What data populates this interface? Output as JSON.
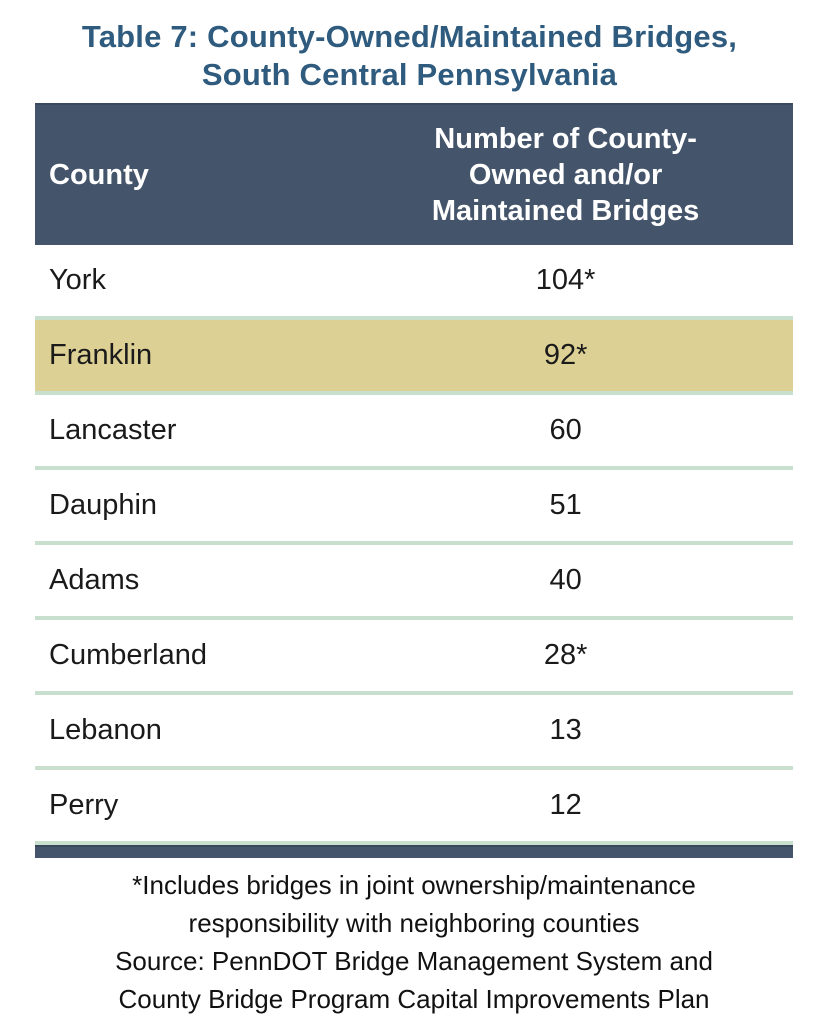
{
  "page": {
    "title_lines": [
      "Table 7: County-Owned/Maintained Bridges,",
      "South Central Pennsylvania"
    ]
  },
  "table": {
    "header": {
      "county_label": "County",
      "number_label": "Number of County-Owned and/or Maintained Bridges",
      "number_label_lines": [
        "Number of County-",
        "Owned and/or",
        "Maintained Bridges"
      ]
    },
    "rows": [
      {
        "county": "York",
        "value": "104*",
        "highlight": false
      },
      {
        "county": "Franklin",
        "value": "92*",
        "highlight": true
      },
      {
        "county": "Lancaster",
        "value": "60",
        "highlight": false
      },
      {
        "county": "Dauphin",
        "value": "51",
        "highlight": false
      },
      {
        "county": "Adams",
        "value": "40",
        "highlight": false
      },
      {
        "county": "Cumberland",
        "value": "28*",
        "highlight": false
      },
      {
        "county": "Lebanon",
        "value": "13",
        "highlight": false
      },
      {
        "county": "Perry",
        "value": "12",
        "highlight": false
      }
    ]
  },
  "footnotes": {
    "asterisk_note": "*Includes bridges in joint ownership/maintenance responsibility with neighboring counties",
    "source_note": "Source: PennDOT Bridge Management System and County Bridge Program Capital Improvements Plan",
    "lines": [
      "*Includes bridges in joint ownership/maintenance",
      "responsibility with neighboring counties",
      "Source: PennDOT Bridge Management System and",
      "County Bridge Program Capital Improvements Plan"
    ]
  },
  "colors": {
    "title_text": "#2F5B7E",
    "header_bg": "#44546A",
    "header_text": "#FFFFFF",
    "highlight_row_bg": "#DDD094",
    "row_separator": "#C9DFCE",
    "body_text": "#1A1A1A",
    "bottom_bar": "#44546A"
  },
  "chart_data": {
    "type": "table",
    "title": "Table 7: County-Owned/Maintained Bridges, South Central Pennsylvania",
    "columns": [
      "County",
      "Number of County-Owned and/or Maintained Bridges"
    ],
    "rows": [
      [
        "York",
        "104*"
      ],
      [
        "Franklin",
        "92*"
      ],
      [
        "Lancaster",
        "60"
      ],
      [
        "Dauphin",
        "51"
      ],
      [
        "Adams",
        "40"
      ],
      [
        "Cumberland",
        "28*"
      ],
      [
        "Lebanon",
        "13"
      ],
      [
        "Perry",
        "12"
      ]
    ],
    "highlighted_row": "Franklin",
    "notes": [
      "*Includes bridges in joint ownership/maintenance responsibility with neighboring counties",
      "Source: PennDOT Bridge Management System and County Bridge Program Capital Improvements Plan"
    ]
  }
}
